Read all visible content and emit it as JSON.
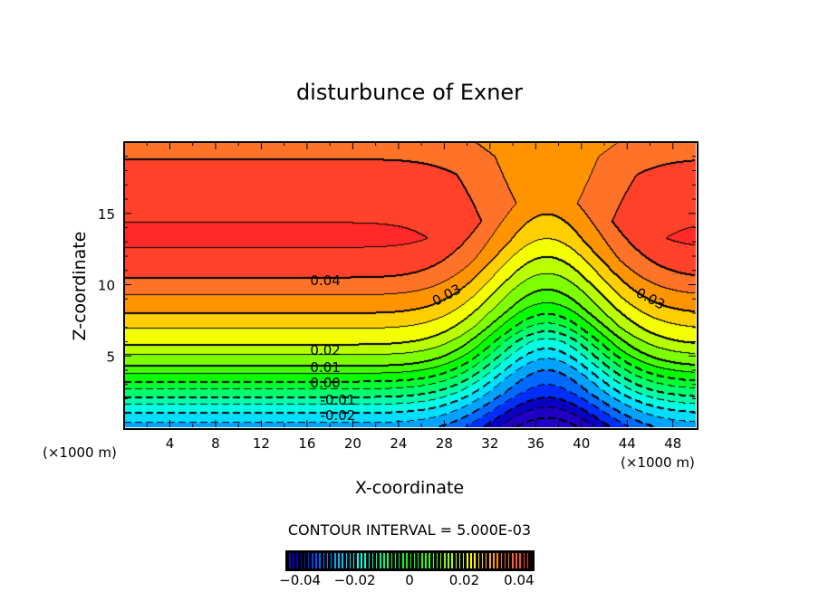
{
  "chart_data": {
    "type": "heatmap",
    "subtype": "filled-contour",
    "title": "disturbunce of Exner",
    "xlabel": "X-coordinate",
    "ylabel": "Z-coordinate",
    "x_unit": "(×1000 m)",
    "z_unit": "(×1000 m)",
    "xlim": [
      0,
      50
    ],
    "ylim": [
      0,
      20
    ],
    "xticks": [
      "4",
      "8",
      "12",
      "16",
      "20",
      "24",
      "28",
      "32",
      "36",
      "40",
      "44",
      "48"
    ],
    "xtick_values": [
      4,
      8,
      12,
      16,
      20,
      24,
      28,
      32,
      36,
      40,
      44,
      48
    ],
    "yticks": [
      "5",
      "10",
      "15"
    ],
    "ytick_values": [
      5,
      10,
      15
    ],
    "contour_interval_text": "CONTOUR INTERVAL = 5.000E-03",
    "contour_interval": 0.005,
    "contour_labels": [
      {
        "text": "0.04",
        "x": 17.6,
        "z": 10.3,
        "rot": 0
      },
      {
        "text": "0.03",
        "x": 28.2,
        "z": 9.3,
        "rot": -28
      },
      {
        "text": "0.03",
        "x": 46.0,
        "z": 9.0,
        "rot": 28
      },
      {
        "text": "0.02",
        "x": 17.6,
        "z": 5.4,
        "rot": 0
      },
      {
        "text": "0.01",
        "x": 17.6,
        "z": 4.2,
        "rot": 0
      },
      {
        "text": "0.00",
        "x": 17.6,
        "z": 3.1,
        "rot": 0
      },
      {
        "text": "-0.01",
        "x": 18.7,
        "z": 1.9,
        "rot": 0
      },
      {
        "text": "-0.02",
        "x": 18.7,
        "z": 0.85,
        "rot": 0
      }
    ],
    "left_profile": {
      "z": [
        0,
        1,
        2,
        3.2,
        4.3,
        5.8,
        8,
        10.5,
        13,
        17,
        20
      ],
      "value": [
        -0.027,
        -0.02,
        -0.011,
        0.0,
        0.01,
        0.02,
        0.03,
        0.04,
        0.046,
        0.043,
        0.038
      ]
    },
    "trough": {
      "x_center": 37,
      "x_width": 6.5,
      "z_lift": 3.2,
      "value_drop": 0.013
    },
    "colorbar": {
      "min": -0.045,
      "max": 0.045,
      "ticks": [
        "-0.04",
        "-0.02",
        "0",
        "0.02",
        "0.04"
      ],
      "tick_values": [
        -0.04,
        -0.02,
        0,
        0.02,
        0.04
      ]
    }
  }
}
